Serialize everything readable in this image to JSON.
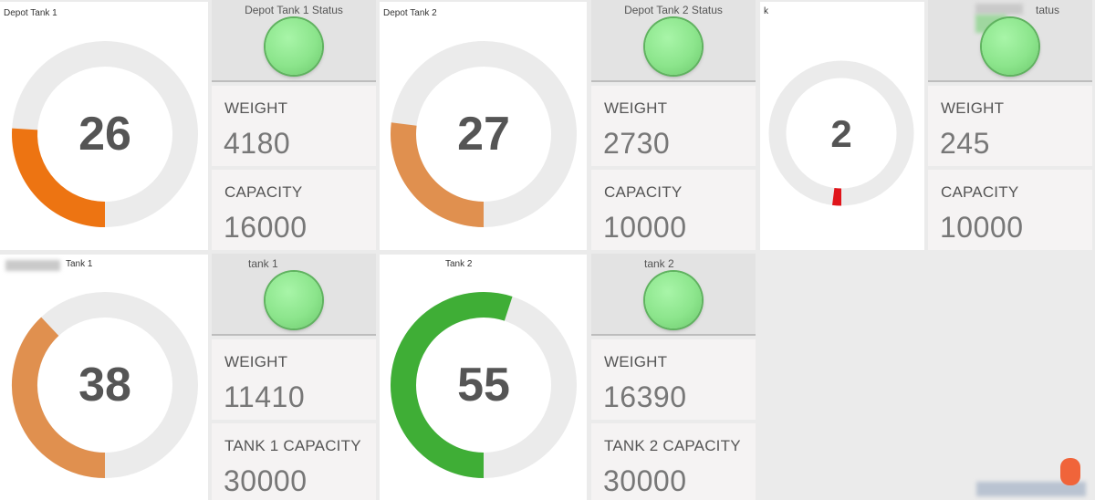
{
  "panels": {
    "depot1": {
      "title": "Depot Tank 1",
      "status_title": "Depot Tank 1 Status",
      "gauge_value": "26",
      "gauge_percent": 26,
      "gauge_color": "#ed7412",
      "weight_label": "WEIGHT",
      "weight_value": "4180",
      "capacity_label": "CAPACITY",
      "capacity_value": "16000"
    },
    "depot2": {
      "title": "Depot Tank 2",
      "status_title": "Depot Tank 2 Status",
      "gauge_value": "27",
      "gauge_percent": 27,
      "gauge_color": "#e0904f",
      "weight_label": "WEIGHT",
      "weight_value": "2730",
      "capacity_label": "CAPACITY",
      "capacity_value": "10000"
    },
    "third": {
      "title": "k",
      "status_title": "tatus",
      "gauge_value": "2",
      "gauge_percent": 2,
      "gauge_color": "#e0141a",
      "weight_label": "WEIGHT",
      "weight_value": "245",
      "capacity_label": "CAPACITY",
      "capacity_value": "10000"
    },
    "tank1": {
      "title": "Tank 1",
      "status_title": "tank 1",
      "gauge_value": "38",
      "gauge_percent": 38,
      "gauge_color": "#e0904f",
      "weight_label": "WEIGHT",
      "weight_value": "11410",
      "capacity_label": "TANK 1 CAPACITY",
      "capacity_value": "30000"
    },
    "tank2": {
      "title": "Tank 2",
      "status_title": "tank 2",
      "gauge_value": "55",
      "gauge_percent": 55,
      "gauge_color": "#3fae36",
      "weight_label": "WEIGHT",
      "weight_value": "16390",
      "capacity_label": "TANK 2 CAPACITY",
      "capacity_value": "30000"
    }
  },
  "colors": {
    "track": "#ebebeb",
    "status_led": "#8ce58c",
    "alert_badge": "#f0643a"
  }
}
